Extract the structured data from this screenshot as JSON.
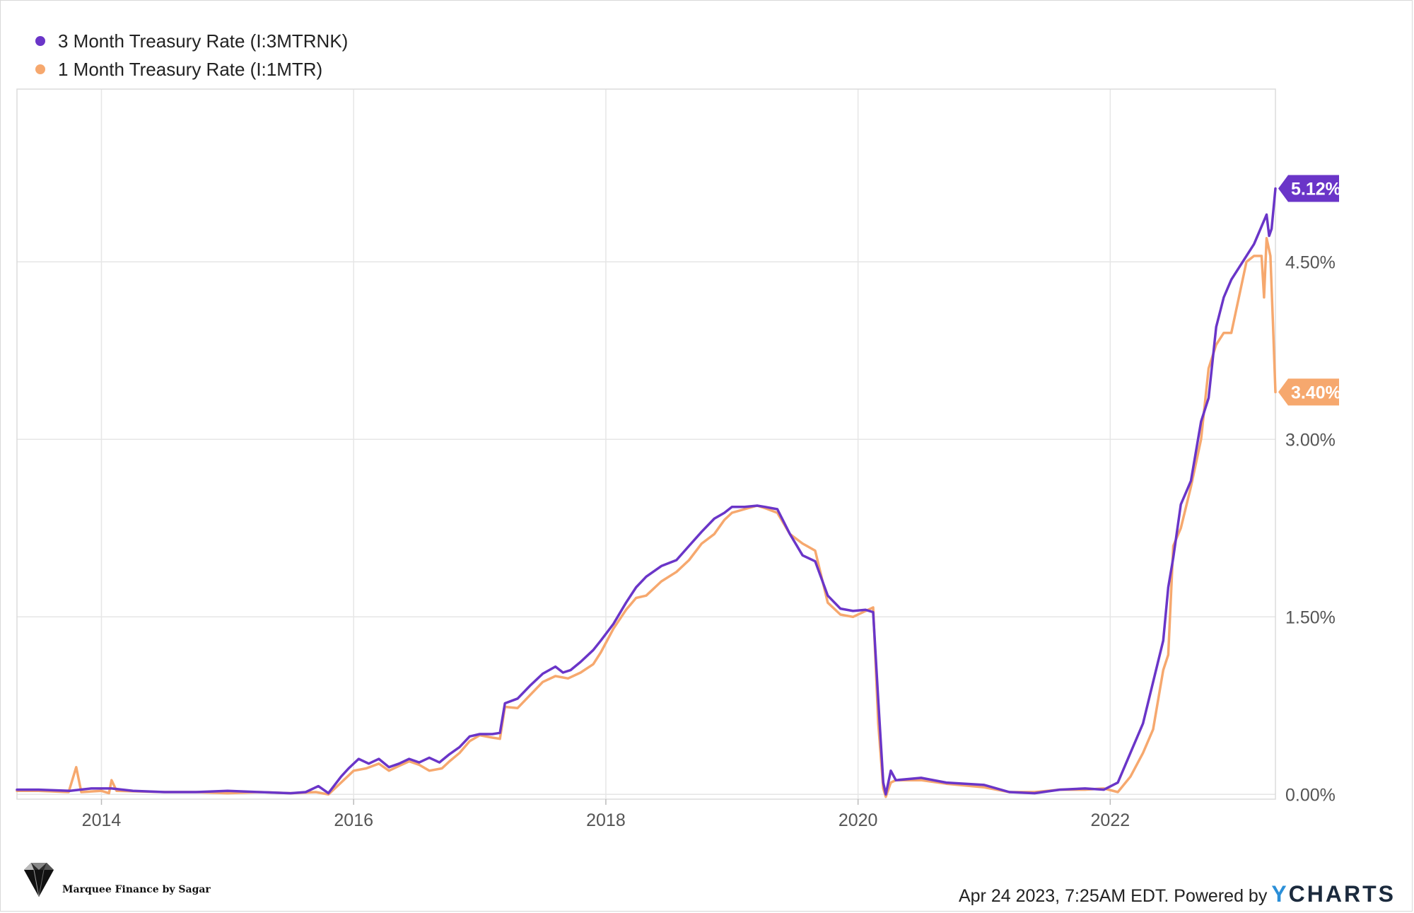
{
  "chart_data": {
    "type": "line",
    "title": "",
    "xlabel": "",
    "ylabel": "",
    "xlim": [
      2013.33,
      2023.31
    ],
    "ylim": [
      -0.04,
      5.96
    ],
    "x_ticks": [
      2014,
      2016,
      2018,
      2020,
      2022
    ],
    "x_tick_labels": [
      "2014",
      "2016",
      "2018",
      "2020",
      "2022"
    ],
    "y_ticks": [
      0,
      1.5,
      3.0,
      4.5
    ],
    "y_tick_labels": [
      "0.00%",
      "1.50%",
      "3.00%",
      "4.50%"
    ],
    "grid": true,
    "legend_position": "top-left",
    "series": [
      {
        "name": "3 Month Treasury Rate (I:3MTRNK)",
        "color": "#6a35c8",
        "end_label": "5.12%",
        "points": [
          [
            2013.33,
            0.04
          ],
          [
            2013.5,
            0.04
          ],
          [
            2013.75,
            0.03
          ],
          [
            2013.92,
            0.05
          ],
          [
            2014.08,
            0.05
          ],
          [
            2014.25,
            0.03
          ],
          [
            2014.5,
            0.02
          ],
          [
            2014.75,
            0.02
          ],
          [
            2015.0,
            0.03
          ],
          [
            2015.25,
            0.02
          ],
          [
            2015.5,
            0.01
          ],
          [
            2015.62,
            0.02
          ],
          [
            2015.72,
            0.07
          ],
          [
            2015.8,
            0.01
          ],
          [
            2015.9,
            0.15
          ],
          [
            2015.96,
            0.22
          ],
          [
            2016.04,
            0.3
          ],
          [
            2016.12,
            0.26
          ],
          [
            2016.2,
            0.3
          ],
          [
            2016.28,
            0.23
          ],
          [
            2016.36,
            0.26
          ],
          [
            2016.44,
            0.3
          ],
          [
            2016.52,
            0.27
          ],
          [
            2016.6,
            0.31
          ],
          [
            2016.68,
            0.27
          ],
          [
            2016.76,
            0.34
          ],
          [
            2016.84,
            0.4
          ],
          [
            2016.92,
            0.49
          ],
          [
            2017.0,
            0.51
          ],
          [
            2017.1,
            0.51
          ],
          [
            2017.16,
            0.52
          ],
          [
            2017.2,
            0.77
          ],
          [
            2017.3,
            0.81
          ],
          [
            2017.4,
            0.92
          ],
          [
            2017.5,
            1.02
          ],
          [
            2017.6,
            1.08
          ],
          [
            2017.66,
            1.03
          ],
          [
            2017.72,
            1.05
          ],
          [
            2017.8,
            1.12
          ],
          [
            2017.9,
            1.22
          ],
          [
            2017.96,
            1.3
          ],
          [
            2018.06,
            1.44
          ],
          [
            2018.16,
            1.62
          ],
          [
            2018.24,
            1.75
          ],
          [
            2018.32,
            1.84
          ],
          [
            2018.44,
            1.93
          ],
          [
            2018.56,
            1.98
          ],
          [
            2018.66,
            2.1
          ],
          [
            2018.76,
            2.22
          ],
          [
            2018.86,
            2.33
          ],
          [
            2018.94,
            2.38
          ],
          [
            2019.0,
            2.43
          ],
          [
            2019.1,
            2.43
          ],
          [
            2019.2,
            2.44
          ],
          [
            2019.26,
            2.43
          ],
          [
            2019.36,
            2.41
          ],
          [
            2019.46,
            2.2
          ],
          [
            2019.56,
            2.02
          ],
          [
            2019.66,
            1.97
          ],
          [
            2019.76,
            1.68
          ],
          [
            2019.86,
            1.57
          ],
          [
            2019.96,
            1.55
          ],
          [
            2020.06,
            1.56
          ],
          [
            2020.12,
            1.54
          ],
          [
            2020.16,
            0.8
          ],
          [
            2020.2,
            0.1
          ],
          [
            2020.22,
            0.0
          ],
          [
            2020.26,
            0.2
          ],
          [
            2020.3,
            0.12
          ],
          [
            2020.5,
            0.14
          ],
          [
            2020.7,
            0.1
          ],
          [
            2021.0,
            0.08
          ],
          [
            2021.2,
            0.02
          ],
          [
            2021.4,
            0.01
          ],
          [
            2021.6,
            0.04
          ],
          [
            2021.8,
            0.05
          ],
          [
            2021.95,
            0.04
          ],
          [
            2022.06,
            0.1
          ],
          [
            2022.16,
            0.35
          ],
          [
            2022.26,
            0.6
          ],
          [
            2022.34,
            0.95
          ],
          [
            2022.42,
            1.3
          ],
          [
            2022.46,
            1.75
          ],
          [
            2022.5,
            2.0
          ],
          [
            2022.56,
            2.45
          ],
          [
            2022.64,
            2.65
          ],
          [
            2022.72,
            3.15
          ],
          [
            2022.78,
            3.35
          ],
          [
            2022.84,
            3.95
          ],
          [
            2022.9,
            4.2
          ],
          [
            2022.96,
            4.35
          ],
          [
            2023.02,
            4.45
          ],
          [
            2023.08,
            4.55
          ],
          [
            2023.14,
            4.65
          ],
          [
            2023.2,
            4.8
          ],
          [
            2023.24,
            4.9
          ],
          [
            2023.26,
            4.72
          ],
          [
            2023.28,
            4.78
          ],
          [
            2023.31,
            5.12
          ]
        ]
      },
      {
        "name": "1 Month Treasury Rate (I:1MTR)",
        "color": "#f6a86e",
        "end_label": "3.40%",
        "points": [
          [
            2013.33,
            0.03
          ],
          [
            2013.5,
            0.03
          ],
          [
            2013.74,
            0.02
          ],
          [
            2013.8,
            0.23
          ],
          [
            2013.84,
            0.02
          ],
          [
            2014.0,
            0.03
          ],
          [
            2014.06,
            0.01
          ],
          [
            2014.08,
            0.12
          ],
          [
            2014.12,
            0.03
          ],
          [
            2014.5,
            0.02
          ],
          [
            2014.75,
            0.02
          ],
          [
            2015.0,
            0.01
          ],
          [
            2015.25,
            0.02
          ],
          [
            2015.5,
            0.01
          ],
          [
            2015.7,
            0.02
          ],
          [
            2015.8,
            0.0
          ],
          [
            2015.9,
            0.1
          ],
          [
            2016.0,
            0.2
          ],
          [
            2016.1,
            0.22
          ],
          [
            2016.2,
            0.26
          ],
          [
            2016.28,
            0.2
          ],
          [
            2016.36,
            0.24
          ],
          [
            2016.44,
            0.28
          ],
          [
            2016.52,
            0.25
          ],
          [
            2016.6,
            0.2
          ],
          [
            2016.7,
            0.22
          ],
          [
            2016.76,
            0.28
          ],
          [
            2016.84,
            0.35
          ],
          [
            2016.92,
            0.45
          ],
          [
            2017.0,
            0.5
          ],
          [
            2017.1,
            0.48
          ],
          [
            2017.16,
            0.47
          ],
          [
            2017.2,
            0.74
          ],
          [
            2017.3,
            0.73
          ],
          [
            2017.4,
            0.84
          ],
          [
            2017.5,
            0.95
          ],
          [
            2017.6,
            1.0
          ],
          [
            2017.7,
            0.98
          ],
          [
            2017.8,
            1.03
          ],
          [
            2017.9,
            1.1
          ],
          [
            2017.96,
            1.2
          ],
          [
            2018.06,
            1.4
          ],
          [
            2018.16,
            1.56
          ],
          [
            2018.24,
            1.66
          ],
          [
            2018.32,
            1.68
          ],
          [
            2018.44,
            1.8
          ],
          [
            2018.56,
            1.88
          ],
          [
            2018.66,
            1.98
          ],
          [
            2018.76,
            2.12
          ],
          [
            2018.86,
            2.2
          ],
          [
            2018.94,
            2.32
          ],
          [
            2019.0,
            2.38
          ],
          [
            2019.1,
            2.41
          ],
          [
            2019.2,
            2.44
          ],
          [
            2019.26,
            2.42
          ],
          [
            2019.36,
            2.38
          ],
          [
            2019.46,
            2.2
          ],
          [
            2019.56,
            2.12
          ],
          [
            2019.66,
            2.06
          ],
          [
            2019.76,
            1.62
          ],
          [
            2019.86,
            1.52
          ],
          [
            2019.96,
            1.5
          ],
          [
            2020.06,
            1.55
          ],
          [
            2020.12,
            1.58
          ],
          [
            2020.16,
            0.6
          ],
          [
            2020.2,
            0.05
          ],
          [
            2020.22,
            -0.02
          ],
          [
            2020.26,
            0.1
          ],
          [
            2020.3,
            0.12
          ],
          [
            2020.5,
            0.12
          ],
          [
            2020.7,
            0.09
          ],
          [
            2021.0,
            0.06
          ],
          [
            2021.2,
            0.02
          ],
          [
            2021.4,
            0.02
          ],
          [
            2021.6,
            0.04
          ],
          [
            2021.8,
            0.04
          ],
          [
            2021.95,
            0.05
          ],
          [
            2022.06,
            0.02
          ],
          [
            2022.16,
            0.15
          ],
          [
            2022.26,
            0.35
          ],
          [
            2022.34,
            0.55
          ],
          [
            2022.42,
            1.05
          ],
          [
            2022.46,
            1.18
          ],
          [
            2022.5,
            2.1
          ],
          [
            2022.56,
            2.25
          ],
          [
            2022.64,
            2.6
          ],
          [
            2022.72,
            3.0
          ],
          [
            2022.78,
            3.6
          ],
          [
            2022.84,
            3.8
          ],
          [
            2022.9,
            3.9
          ],
          [
            2022.96,
            3.9
          ],
          [
            2023.02,
            4.2
          ],
          [
            2023.08,
            4.5
          ],
          [
            2023.14,
            4.55
          ],
          [
            2023.2,
            4.55
          ],
          [
            2023.22,
            4.2
          ],
          [
            2023.24,
            4.7
          ],
          [
            2023.27,
            4.55
          ],
          [
            2023.29,
            4.0
          ],
          [
            2023.31,
            3.4
          ]
        ]
      }
    ]
  },
  "legend": {
    "items": [
      {
        "label": "3 Month Treasury Rate (I:3MTRNK)",
        "color": "#6a35c8"
      },
      {
        "label": "1 Month Treasury Rate (I:1MTR)",
        "color": "#f6a86e"
      }
    ]
  },
  "footer": {
    "left_text": "Marquee Finance by Sagar",
    "right_text": "Apr 24 2023, 7:25AM EDT. Powered by",
    "brand_y": "Y",
    "brand_rest": "CHARTS"
  }
}
